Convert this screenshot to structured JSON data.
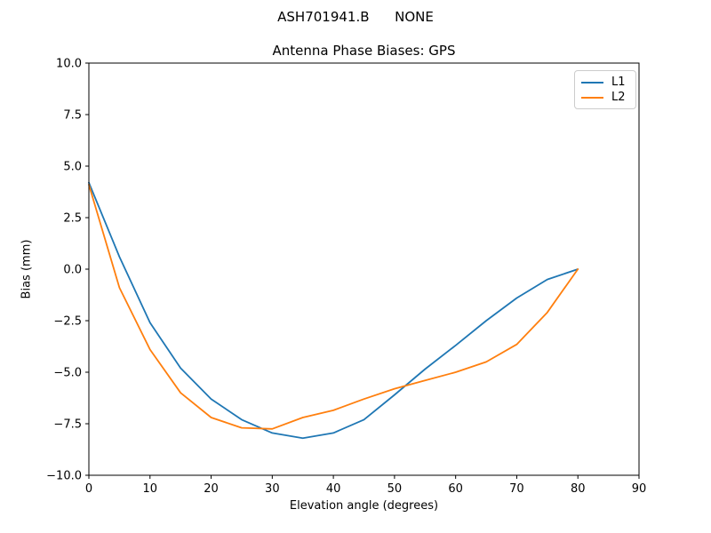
{
  "suptitle": "ASH701941.B      NONE",
  "chart_data": {
    "type": "line",
    "title": "Antenna Phase Biases: GPS",
    "xlabel": "Elevation angle (degrees)",
    "ylabel": "Bias (mm)",
    "xlim": [
      0,
      90
    ],
    "ylim": [
      -10,
      10
    ],
    "grid": false,
    "legend_position": "upper right",
    "x": [
      0,
      5,
      10,
      15,
      20,
      25,
      30,
      35,
      40,
      45,
      50,
      55,
      60,
      65,
      70,
      75,
      80
    ],
    "series": [
      {
        "name": "L1",
        "color": "#1f77b4",
        "values": [
          4.2,
          0.6,
          -2.6,
          -4.8,
          -6.3,
          -7.3,
          -7.95,
          -8.2,
          -7.95,
          -7.3,
          -6.1,
          -4.85,
          -3.7,
          -2.5,
          -1.4,
          -0.5,
          0.0
        ]
      },
      {
        "name": "L2",
        "color": "#ff7f0e",
        "values": [
          4.1,
          -0.9,
          -3.9,
          -6.0,
          -7.2,
          -7.7,
          -7.75,
          -7.2,
          -6.85,
          -6.3,
          -5.8,
          -5.4,
          -5.0,
          -4.5,
          -3.65,
          -2.1,
          0.0
        ]
      }
    ],
    "xticks": {
      "values": [
        0,
        10,
        20,
        30,
        40,
        50,
        60,
        70,
        80,
        90
      ],
      "labels": [
        "0",
        "10",
        "20",
        "30",
        "40",
        "50",
        "60",
        "70",
        "80",
        "90"
      ]
    },
    "yticks": {
      "values": [
        10,
        7.5,
        5,
        2.5,
        0,
        -2.5,
        -5,
        -7.5,
        -10
      ],
      "labels": [
        "10.0",
        "7.5",
        "5.0",
        "2.5",
        "0.0",
        "−2.5",
        "−5.0",
        "−7.5",
        "−10.0"
      ]
    }
  }
}
